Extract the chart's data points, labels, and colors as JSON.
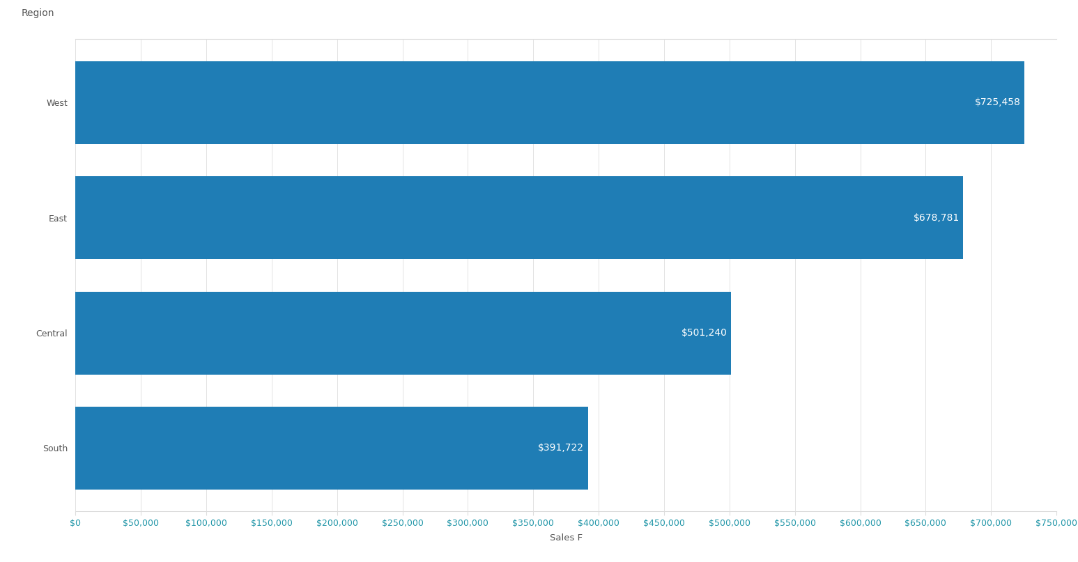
{
  "categories": [
    "South",
    "Central",
    "East",
    "West"
  ],
  "values": [
    391722,
    501240,
    678781,
    725458
  ],
  "labels": [
    "$391,722",
    "$501,240",
    "$678,781",
    "$725,458"
  ],
  "bar_color": "#1f7db5",
  "label_color": "#ffffff",
  "background_color": "#ffffff",
  "xlim": [
    0,
    750000
  ],
  "xticks": [
    0,
    50000,
    100000,
    150000,
    200000,
    250000,
    300000,
    350000,
    400000,
    450000,
    500000,
    550000,
    600000,
    650000,
    700000,
    750000
  ],
  "xlabel": "Sales F",
  "ylabel": "Region",
  "grid_color": "#dddddd",
  "bar_height": 0.72,
  "label_fontsize": 10,
  "axis_label_fontsize": 9.5,
  "tick_fontsize": 9,
  "ylabel_fontsize": 10,
  "ytick_color": "#555555",
  "xtick_color": "#2196a8"
}
